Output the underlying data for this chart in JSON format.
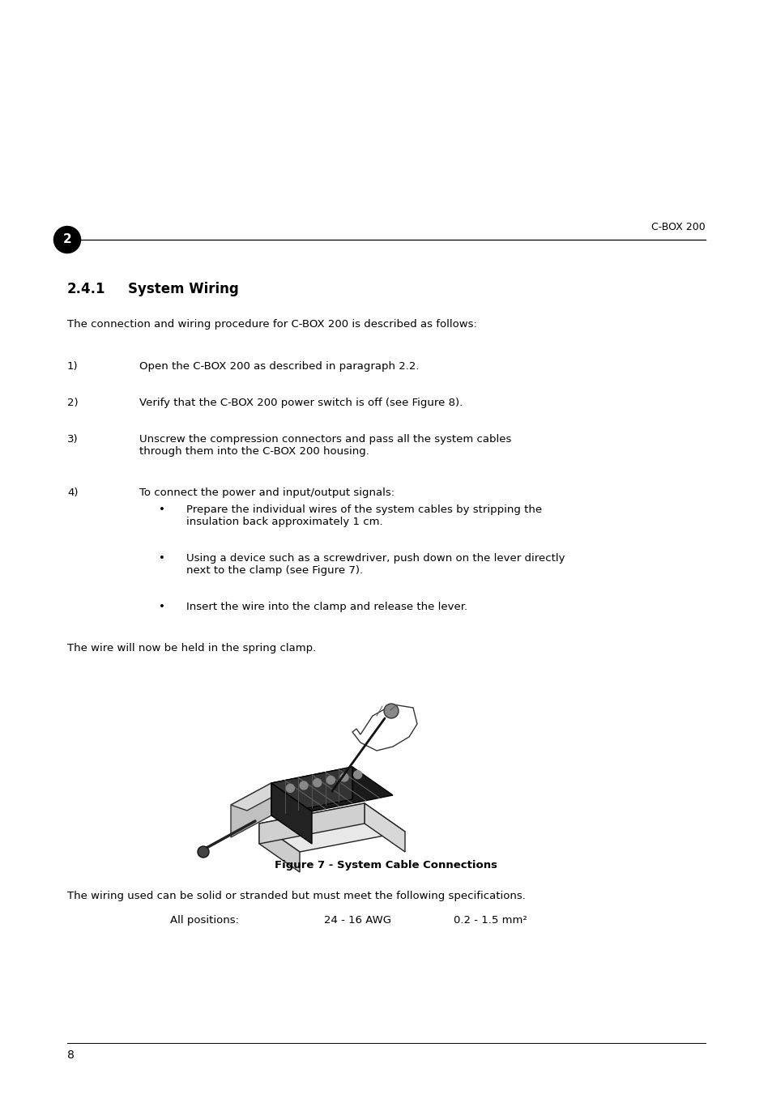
{
  "page_width": 9.54,
  "page_height": 13.51,
  "bg_color": "#ffffff",
  "header_chapter_num": "2",
  "header_title": "C-BOX 200",
  "section_title_num": "2.4.1",
  "section_title_text": "System Wiring",
  "intro_text": "The connection and wiring procedure for C-BOX 200 is described as follows:",
  "steps": [
    {
      "num": "1)",
      "text": "Open the C-BOX 200 as described in paragraph 2.2."
    },
    {
      "num": "2)",
      "text": "Verify that the C-BOX 200 power switch is off (see Figure 8)."
    },
    {
      "num": "3)",
      "text": "Unscrew the compression connectors and pass all the system cables\nthrough them into the C-BOX 200 housing."
    },
    {
      "num": "4)",
      "text": "To connect the power and input/output signals:"
    }
  ],
  "bullet_items": [
    "Prepare the individual wires of the system cables by stripping the\ninsulation back approximately 1 cm.",
    "Using a device such as a screwdriver, push down on the lever directly\nnext to the clamp (see Figure 7).",
    "Insert the wire into the clamp and release the lever."
  ],
  "spring_clamp_text": "The wire will now be held in the spring clamp.",
  "figure_caption": "Figure 7 - System Cable Connections",
  "wiring_specs_intro": "The wiring used can be solid or stranded but must meet the following specifications.",
  "wiring_specs_label": "All positions:",
  "wiring_specs_awg": "24 - 16 AWG",
  "wiring_specs_mm2": "0.2 - 1.5 mm²",
  "footer_page_num": "8",
  "text_color": "#000000",
  "header_circle_color": "#000000",
  "header_circle_text_color": "#ffffff",
  "body_font_size": 9.5,
  "title_font_size": 12,
  "header_font_size": 9,
  "caption_font_size": 9.5
}
